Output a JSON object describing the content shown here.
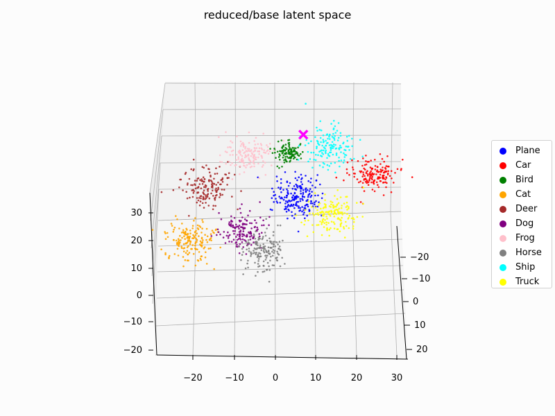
{
  "chart_data": {
    "type": "scatter",
    "title": "reduced/base latent space",
    "xlabel": "",
    "ylabel": "",
    "zlabel": "",
    "x_ticks": [
      "−20",
      "−10",
      "0",
      "10",
      "20",
      "30"
    ],
    "y_ticks": [
      "−20",
      "−10",
      "0",
      "10",
      "20"
    ],
    "z_ticks": [
      "−20",
      "−10",
      "0",
      "10",
      "20",
      "30"
    ],
    "grid": true,
    "legend_position": "right",
    "series": [
      {
        "name": "Plane",
        "color": "#0000ff",
        "center": [
          5,
          -6,
          10
        ],
        "spread": [
          3.0,
          2.0,
          2.5
        ],
        "n": 200
      },
      {
        "name": "Car",
        "color": "#ff0000",
        "center": [
          22,
          -19,
          9
        ],
        "spread": [
          3.0,
          2.5,
          1.8
        ],
        "n": 160
      },
      {
        "name": "Bird",
        "color": "#008000",
        "center": [
          4,
          10,
          30
        ],
        "spread": [
          1.8,
          1.3,
          1.3
        ],
        "n": 120
      },
      {
        "name": "Cat",
        "color": "#ffa500",
        "center": [
          -21,
          2,
          2
        ],
        "spread": [
          3.0,
          2.0,
          2.5
        ],
        "n": 180
      },
      {
        "name": "Deer",
        "color": "#a52a2a",
        "center": [
          -16,
          8,
          20
        ],
        "spread": [
          3.0,
          2.0,
          2.5
        ],
        "n": 160
      },
      {
        "name": "Dog",
        "color": "#800080",
        "center": [
          -8,
          0,
          4
        ],
        "spread": [
          2.5,
          2.0,
          2.5
        ],
        "n": 150
      },
      {
        "name": "Frog",
        "color": "#ffc0cb",
        "center": [
          -5,
          17,
          33
        ],
        "spread": [
          3.0,
          2.0,
          2.0
        ],
        "n": 150
      },
      {
        "name": "Horse",
        "color": "#808080",
        "center": [
          -3,
          -2,
          -2
        ],
        "spread": [
          2.5,
          2.0,
          2.5
        ],
        "n": 160
      },
      {
        "name": "Ship",
        "color": "#00ffff",
        "center": [
          13,
          -3,
          25
        ],
        "spread": [
          3.0,
          2.5,
          2.5
        ],
        "n": 150
      },
      {
        "name": "Truck",
        "color": "#ffff00",
        "center": [
          13,
          -12,
          2
        ],
        "spread": [
          3.0,
          2.0,
          2.5
        ],
        "n": 160
      }
    ],
    "marker": {
      "symbol": "x",
      "color": "#ff00ff",
      "x": 8,
      "y": 12,
      "z": 36
    }
  }
}
